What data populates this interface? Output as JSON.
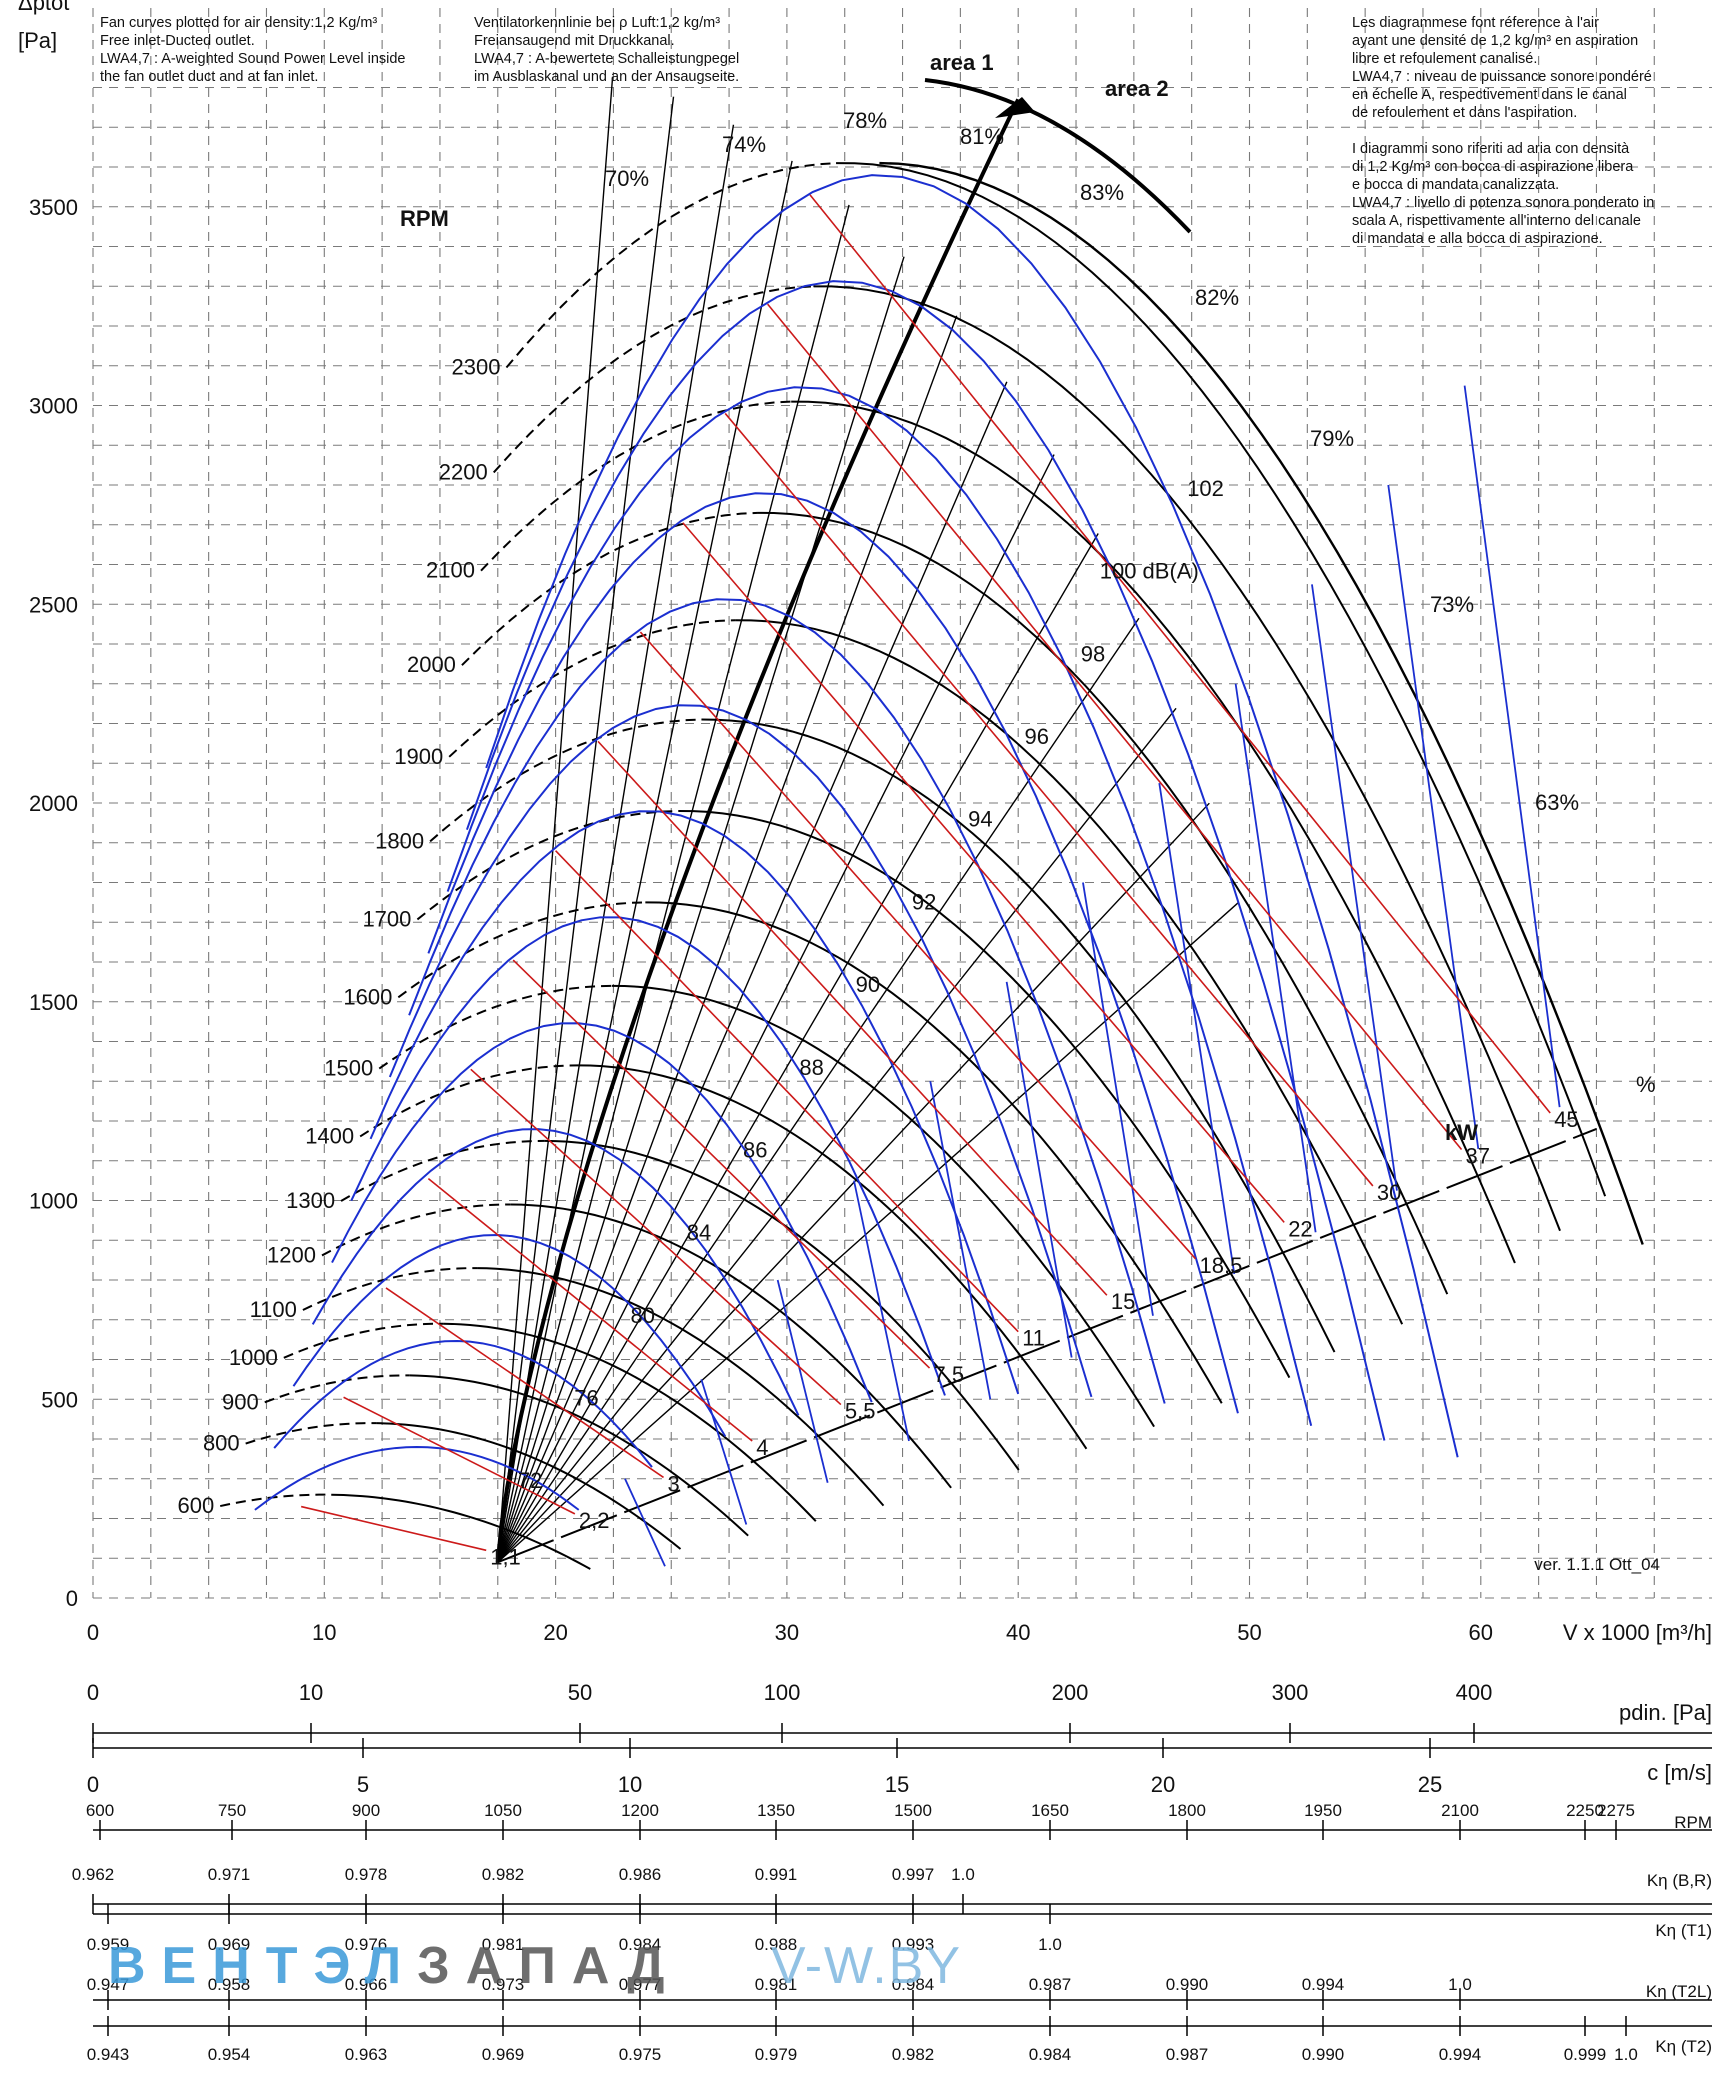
{
  "chart_data": {
    "type": "line",
    "y_axis_label": "Δptot",
    "y_axis_unit": "[Pa]",
    "x_axis_label": "V x 1000 [m³/h]",
    "rpm_label": "RPM",
    "ylim": [
      0,
      3800
    ],
    "xlim": [
      0,
      70
    ],
    "y_ticks": [
      "0",
      "500",
      "1000",
      "1500",
      "2000",
      "2500",
      "3000",
      "3500"
    ],
    "x_ticks": [
      "0",
      "10",
      "20",
      "30",
      "40",
      "50",
      "60"
    ],
    "area_labels": [
      "area 1",
      "area 2"
    ],
    "kw_label": "kW",
    "percent_label": "%",
    "rpm_curves": [
      {
        "rpm": "600",
        "peak": [
          10,
          260
        ]
      },
      {
        "rpm": "800",
        "peak": [
          12,
          440
        ]
      },
      {
        "rpm": "900",
        "peak": [
          13.5,
          560
        ]
      },
      {
        "rpm": "1000",
        "peak": [
          15,
          690
        ]
      },
      {
        "rpm": "1100",
        "peak": [
          16.5,
          830
        ]
      },
      {
        "rpm": "1200",
        "peak": [
          18,
          990
        ]
      },
      {
        "rpm": "1300",
        "peak": [
          19.5,
          1150
        ]
      },
      {
        "rpm": "1400",
        "peak": [
          21,
          1340
        ]
      },
      {
        "rpm": "1500",
        "peak": [
          22.5,
          1540
        ]
      },
      {
        "rpm": "1600",
        "peak": [
          24,
          1750
        ]
      },
      {
        "rpm": "1700",
        "peak": [
          25.5,
          1980
        ]
      },
      {
        "rpm": "1800",
        "peak": [
          26.5,
          2210
        ]
      },
      {
        "rpm": "1900",
        "peak": [
          28,
          2460
        ]
      },
      {
        "rpm": "2000",
        "peak": [
          29,
          2730
        ]
      },
      {
        "rpm": "2100",
        "peak": [
          30.5,
          3010
        ]
      },
      {
        "rpm": "2200",
        "peak": [
          31.5,
          3300
        ]
      },
      {
        "rpm": "2300",
        "peak": [
          32.5,
          3610
        ]
      }
    ],
    "efficiency_labels": [
      "70%",
      "74%",
      "78%",
      "81%",
      "83%",
      "82%",
      "79%",
      "73%",
      "63%"
    ],
    "sound_levels": [
      "72",
      "76",
      "80",
      "84",
      "86",
      "88",
      "90",
      "92",
      "94",
      "96",
      "98",
      "100 dB(A)",
      "102"
    ],
    "power_kw": [
      "1,1",
      "2,2",
      "3",
      "4",
      "5,5",
      "7,5",
      "11",
      "15",
      "18,5",
      "22",
      "30",
      "37",
      "45"
    ],
    "version": "ver. 1.1.1 Ott_04"
  },
  "notes": {
    "en": "Fan curves plotted for air density:1,2 Kg/m³\nFree inlet-Ducted outlet.\nLWA4,7 : A-weighted Sound Power Level inside\nthe fan outlet duct and at fan inlet.",
    "de": "Ventilatorkennlinie bei ρ Luft:1,2 kg/m³\nFreiansaugend mit Druckkanal.\nLWA4,7 : A-bewertete Schalleistungpegel\nim Ausblaskanal und an der Ansaugseite.",
    "fr_it": "Les diagrammese font réference à l'air\nayant une densité de 1,2 kg/m³ en aspiration\nlibre et refoulement canalisé.\nLWA4,7 : niveau de puissance sonore pondéré\nen échelle A, respectivement dans le canal\nde refoulement et dans l'aspiration.\n\nI diagrammi sono riferiti ad aria con densità\ndi 1,2 Kg/m³ con bocca di aspirazione libera\ne bocca di mandata canalizzata.\nLWA4,7 : livello di potenza sonora ponderato in\nscala A, rispettivamente all'interno del canale\ndi mandata e alla bocca di aspirazione."
  },
  "scales": {
    "pdin": {
      "label": "pdin. [Pa]",
      "ticks": [
        "0",
        "10",
        "50",
        "100",
        "200",
        "300",
        "400"
      ]
    },
    "velocity": {
      "label": "c [m/s]",
      "ticks": [
        "0",
        "5",
        "10",
        "15",
        "20",
        "25"
      ]
    },
    "rpm": {
      "label": "RPM",
      "ticks": [
        "600",
        "750",
        "900",
        "1050",
        "1200",
        "1350",
        "1500",
        "1650",
        "1800",
        "1950",
        "2100",
        "2250",
        "2275"
      ]
    },
    "k_br": {
      "label": "Kη (B,R)",
      "ticks": [
        "0.962",
        "0.971",
        "0.978",
        "0.982",
        "0.986",
        "0.991",
        "0.997",
        "1.0"
      ]
    },
    "k_t1": {
      "label": "Kη (T1)",
      "ticks": [
        "0.959",
        "0.969",
        "0.976",
        "0.981",
        "0.984",
        "0.988",
        "0.993",
        "1.0"
      ]
    },
    "k_t2l": {
      "label": "Kη (T2L)",
      "ticks": [
        "0.947",
        "0.958",
        "0.966",
        "0.973",
        "0.977",
        "0.981",
        "0.984",
        "0.987",
        "0.990",
        "0.994",
        "1.0"
      ]
    },
    "k_t2": {
      "label": "Kη (T2)",
      "ticks": [
        "0.943",
        "0.954",
        "0.963",
        "0.969",
        "0.975",
        "0.979",
        "0.982",
        "0.984",
        "0.987",
        "0.990",
        "0.994",
        "0.999",
        "1.0"
      ]
    }
  },
  "watermark": {
    "part1": "ВЕНТЭЛ",
    "part2": "ЗАПАД",
    "part3": "V-W.BY",
    "color1": "#3a9ad9",
    "color2": "#555555",
    "color3": "#7fb8e0"
  },
  "colors": {
    "sound": "#1b2fd0",
    "power": "#cc1a1a",
    "rpm": "#000000",
    "grid": "#777777"
  }
}
